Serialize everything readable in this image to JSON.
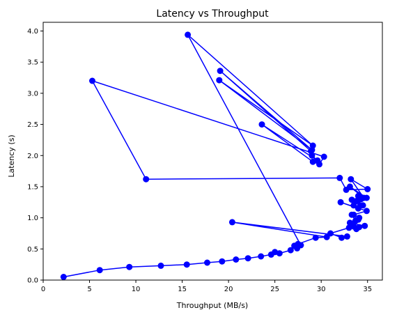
{
  "chart_data": {
    "type": "line",
    "title": "Latency vs Throughput",
    "xlabel": "Throughput (MB/s)",
    "ylabel": "Latency (s)",
    "xlim": [
      0,
      36.6
    ],
    "ylim": [
      0,
      4.14
    ],
    "xticks": [
      0,
      5,
      10,
      15,
      20,
      25,
      30,
      35
    ],
    "yticks": [
      0.0,
      0.5,
      1.0,
      1.5,
      2.0,
      2.5,
      3.0,
      3.5,
      4.0
    ],
    "xtick_labels": [
      "0",
      "5",
      "10",
      "15",
      "20",
      "25",
      "30",
      "35"
    ],
    "ytick_labels": [
      "0.0",
      "0.5",
      "1.0",
      "1.5",
      "2.0",
      "2.5",
      "3.0",
      "3.5",
      "4.0"
    ],
    "grid": false,
    "marker": "circle",
    "color": "#0000ff",
    "series": [
      {
        "x": [
          2.2,
          6.1,
          9.3,
          12.7,
          15.5,
          17.7,
          19.3,
          20.8,
          22.1,
          23.5,
          24.6,
          25.0,
          25.5,
          26.7,
          27.1,
          27.4,
          27.8,
          15.6,
          29.1,
          19.0,
          29.0,
          19.1,
          28.9,
          29.0,
          29.6,
          23.6,
          29.1,
          29.8,
          30.3,
          5.3,
          11.1,
          32.0,
          32.7,
          35.0,
          33.2,
          34.6,
          33.1,
          34.9,
          33.5,
          34.3,
          33.3,
          33.8,
          34.0,
          34.2,
          34.5,
          34.0,
          32.1,
          34.9,
          33.5,
          34.1,
          33.7,
          33.3,
          34.0,
          33.1,
          34.7,
          33.5,
          34.1,
          33.8,
          33.0,
          31.0,
          32.2,
          32.8,
          20.4,
          30.6,
          29.4,
          27.5
        ],
        "y": [
          0.05,
          0.16,
          0.21,
          0.23,
          0.25,
          0.28,
          0.3,
          0.33,
          0.35,
          0.38,
          0.41,
          0.45,
          0.43,
          0.48,
          0.55,
          0.51,
          0.56,
          3.94,
          2.16,
          3.21,
          2.09,
          3.36,
          2.07,
          2.0,
          1.92,
          2.5,
          1.9,
          1.86,
          1.98,
          3.2,
          1.62,
          1.64,
          1.45,
          1.46,
          1.62,
          1.32,
          1.5,
          1.32,
          1.2,
          1.3,
          1.29,
          1.27,
          1.35,
          1.2,
          1.2,
          1.15,
          1.25,
          1.11,
          1.05,
          1.0,
          0.95,
          1.05,
          0.97,
          0.92,
          0.87,
          0.86,
          0.85,
          0.82,
          0.84,
          0.75,
          0.68,
          0.7,
          0.93,
          0.69,
          0.68,
          0.58
        ]
      }
    ]
  }
}
